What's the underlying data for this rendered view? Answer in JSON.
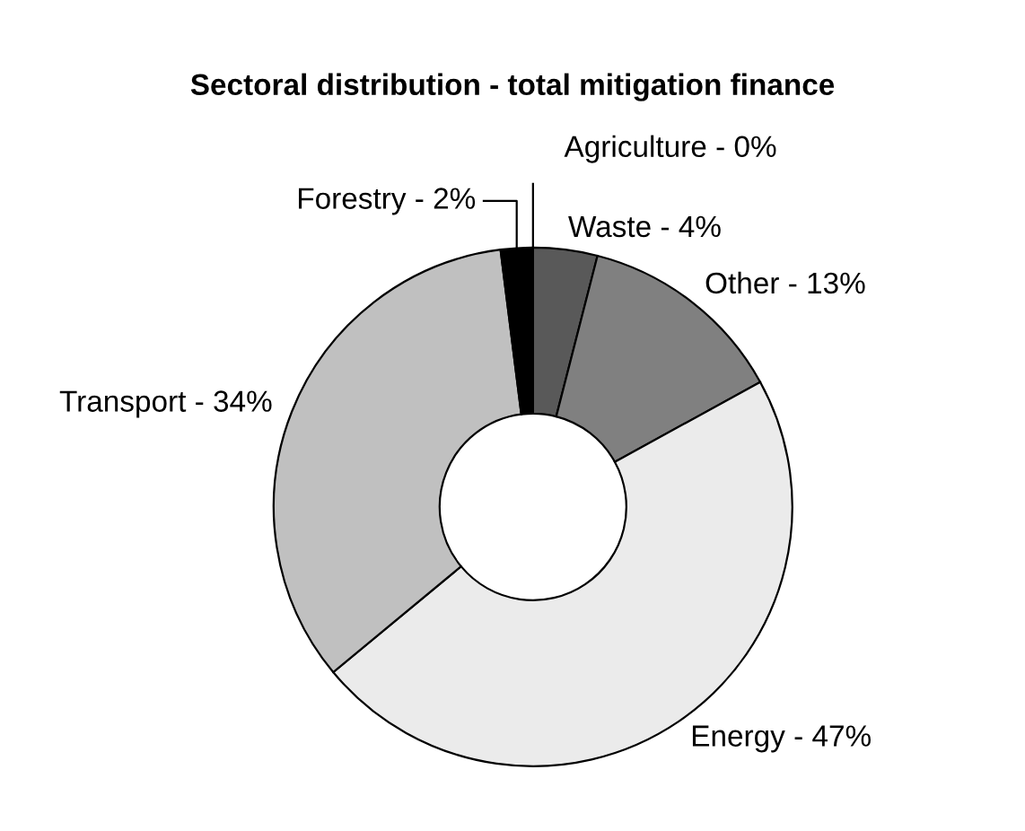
{
  "chart_data": {
    "type": "donut",
    "title": "Sectoral distribution - total mitigation finance",
    "categories": [
      "Agriculture - 0%",
      "Waste - 4%",
      "Other - 13%",
      "Energy - 47%",
      "Transport - 34%",
      "Forestry - 2%"
    ],
    "values": [
      0,
      4,
      13,
      47,
      34,
      2
    ],
    "colors": [
      "#ffffff",
      "#595959",
      "#808080",
      "#ebebeb",
      "#c0c0c0",
      "#000000"
    ],
    "legend": false
  }
}
